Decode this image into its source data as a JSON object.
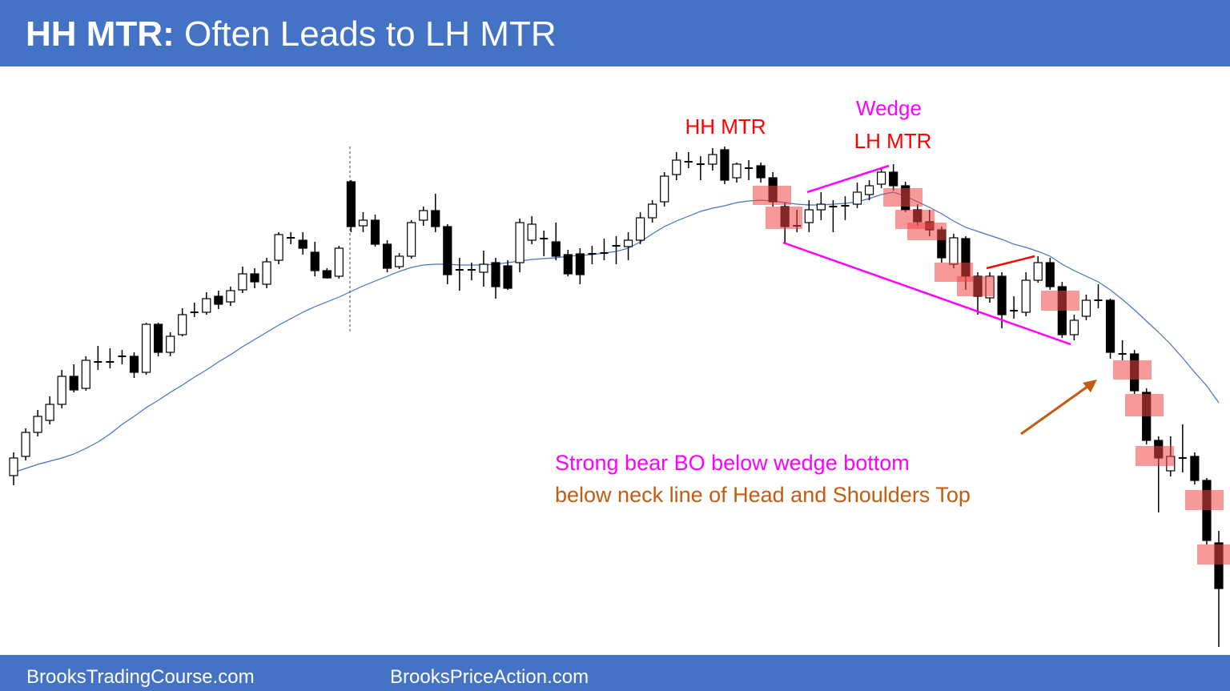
{
  "title": {
    "bold": "HH MTR:",
    "rest": "Often Leads to LH MTR"
  },
  "chart_data": {
    "type": "candlestick",
    "open": [
      216,
      240,
      270,
      285,
      305,
      340,
      325,
      358,
      358,
      365,
      365,
      345,
      405,
      370,
      392,
      420,
      420,
      440,
      433,
      448,
      468,
      455,
      485,
      513,
      510,
      495,
      472,
      465,
      583,
      528,
      535,
      505,
      477,
      490,
      535,
      547,
      527,
      473,
      473,
      470,
      482,
      478,
      482,
      510,
      512,
      508,
      492,
      493,
      493,
      494,
      503,
      502,
      510,
      538,
      558,
      592,
      608,
      605,
      605,
      623,
      588,
      600,
      603,
      588,
      552,
      528,
      532,
      548,
      552,
      553,
      555,
      567,
      580,
      595,
      578,
      548,
      533,
      523,
      480,
      512,
      465,
      438,
      465,
      422,
      420,
      460,
      482,
      452,
      392,
      415,
      435,
      435,
      368,
      368,
      320,
      260,
      222,
      238,
      240,
      210,
      132
    ],
    "high": [
      245,
      275,
      298,
      315,
      348,
      355,
      365,
      378,
      375,
      373,
      370,
      407,
      407,
      395,
      425,
      432,
      445,
      447,
      452,
      477,
      475,
      488,
      520,
      520,
      520,
      508,
      475,
      503,
      585,
      545,
      542,
      510,
      494,
      535,
      552,
      568,
      530,
      488,
      482,
      497,
      488,
      485,
      537,
      540,
      522,
      532,
      498,
      500,
      503,
      512,
      515,
      520,
      545,
      560,
      595,
      620,
      620,
      615,
      625,
      627,
      607,
      610,
      607,
      595,
      557,
      548,
      560,
      570,
      560,
      565,
      582,
      585,
      600,
      605,
      583,
      555,
      548,
      527,
      518,
      515,
      470,
      470,
      470,
      440,
      470,
      490,
      488,
      458,
      417,
      442,
      455,
      437,
      385,
      373,
      325,
      265,
      265,
      280,
      245,
      213,
      147
    ],
    "low": [
      204,
      235,
      265,
      280,
      300,
      320,
      322,
      348,
      350,
      355,
      338,
      342,
      365,
      365,
      390,
      414,
      417,
      424,
      428,
      444,
      450,
      450,
      480,
      505,
      492,
      465,
      462,
      462,
      520,
      520,
      502,
      470,
      474,
      487,
      528,
      520,
      455,
      447,
      460,
      452,
      437,
      448,
      470,
      505,
      490,
      485,
      465,
      455,
      480,
      485,
      480,
      485,
      505,
      532,
      552,
      585,
      600,
      585,
      597,
      580,
      582,
      585,
      582,
      552,
      507,
      520,
      520,
      535,
      520,
      535,
      550,
      560,
      575,
      572,
      545,
      528,
      515,
      482,
      475,
      448,
      417,
      432,
      400,
      412,
      415,
      457,
      448,
      388,
      385,
      410,
      425,
      362,
      360,
      318,
      255,
      170,
      215,
      220,
      205,
      130,
      2
    ],
    "close": [
      238,
      270,
      290,
      305,
      340,
      323,
      360,
      358,
      358,
      365,
      345,
      405,
      370,
      390,
      417,
      420,
      437,
      430,
      447,
      468,
      458,
      483,
      517,
      513,
      500,
      472,
      463,
      500,
      527,
      535,
      505,
      475,
      490,
      532,
      547,
      527,
      467,
      473,
      473,
      480,
      452,
      450,
      532,
      530,
      512,
      490,
      468,
      467,
      493,
      494,
      503,
      510,
      538,
      555,
      590,
      610,
      608,
      605,
      617,
      585,
      605,
      600,
      588,
      558,
      527,
      528,
      548,
      555,
      552,
      553,
      570,
      578,
      595,
      578,
      548,
      533,
      523,
      488,
      513,
      465,
      440,
      465,
      417,
      422,
      460,
      482,
      452,
      392,
      410,
      435,
      435,
      370,
      368,
      322,
      260,
      238,
      240,
      238,
      210,
      135,
      75
    ],
    "moving_average": [
      220,
      225,
      230,
      234,
      238,
      243,
      250,
      258,
      268,
      280,
      290,
      301,
      310,
      320,
      329,
      339,
      348,
      358,
      367,
      377,
      386,
      395,
      404,
      412,
      420,
      427,
      433,
      439,
      446,
      453,
      459,
      465,
      471,
      476,
      479,
      480,
      480,
      479,
      479,
      479,
      480,
      482,
      484,
      486,
      487,
      488,
      490,
      491,
      492,
      494,
      496,
      500,
      508,
      518,
      527,
      534,
      540,
      546,
      550,
      553,
      557,
      559,
      560,
      559,
      557,
      555,
      554,
      554,
      555,
      556,
      558,
      562,
      567,
      570,
      565,
      558,
      551,
      543,
      534,
      526,
      521,
      516,
      511,
      505,
      501,
      496,
      490,
      480,
      472,
      465,
      458,
      448,
      436,
      423,
      409,
      395,
      380,
      363,
      345,
      328,
      307
    ],
    "ylim": [
      0,
      710
    ],
    "annotations": [
      "HH MTR",
      "Wedge",
      "LH MTR",
      "Strong bear BO below wedge bottom",
      "below neck line of Head and Shoulders Top"
    ]
  },
  "footer": [
    "BrooksTradingCourse.com",
    "BrooksPriceAction.com"
  ]
}
